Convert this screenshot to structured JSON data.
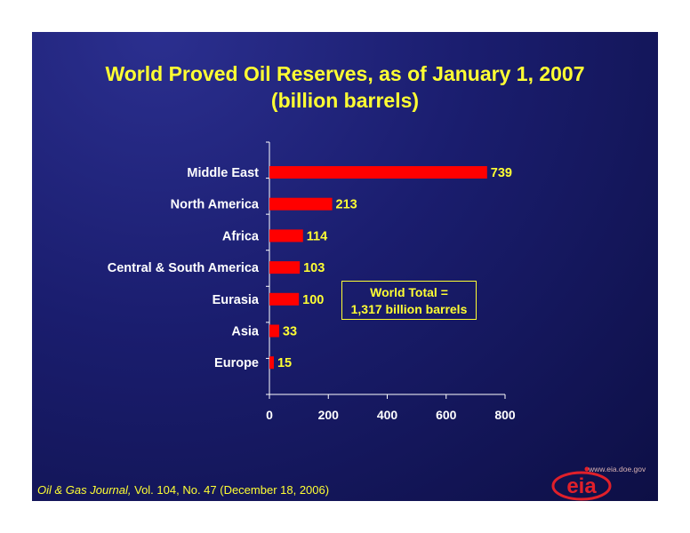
{
  "header": {
    "title_line1": "World Proved Oil Reserves, as of January 1, 2007",
    "title_line2": "(billion barrels)"
  },
  "chart_data": {
    "type": "bar",
    "orientation": "horizontal",
    "categories": [
      "Middle East",
      "North America",
      "Africa",
      "Central & South America",
      "Eurasia",
      "Asia",
      "Europe"
    ],
    "values": [
      739,
      213,
      114,
      103,
      100,
      33,
      15
    ],
    "xlim": [
      0,
      800
    ],
    "xticks": [
      0,
      200,
      400,
      600,
      800
    ],
    "bar_color": "#ff0000",
    "label_color": "#ffff33",
    "grid": false,
    "legend": "none"
  },
  "annotation": {
    "line1": "World Total =",
    "line2": "1,317 billion barrels"
  },
  "footer": {
    "journal": "Oil & Gas Journal,",
    "citation": " Vol. 104, No. 47 (December 18, 2006)",
    "url": "www.eia.doe.gov"
  },
  "logo": {
    "text": "eia",
    "color": "#e0202a"
  }
}
